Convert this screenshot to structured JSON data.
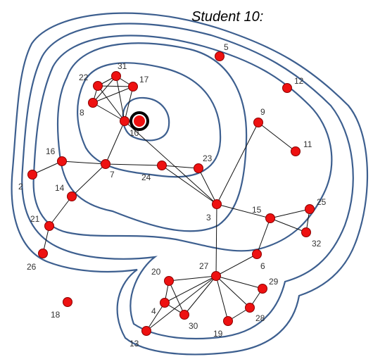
{
  "title": "Student 10:",
  "colors": {
    "contour": "#3d5f8f",
    "node": "#ee1111",
    "edge": "#111111"
  },
  "ego_node": "10",
  "nodes": [
    "2",
    "3",
    "4",
    "5",
    "6",
    "7",
    "8",
    "9",
    "10",
    "11",
    "12",
    "13",
    "14",
    "15",
    "16",
    "17",
    "18",
    "19",
    "20",
    "21",
    "22",
    "23",
    "24",
    "25",
    "26",
    "27",
    "28",
    "29",
    "30",
    "31",
    "32"
  ],
  "edges": [
    [
      "31",
      "22"
    ],
    [
      "31",
      "17"
    ],
    [
      "31",
      "8"
    ],
    [
      "31",
      "10"
    ],
    [
      "22",
      "17"
    ],
    [
      "22",
      "8"
    ],
    [
      "22",
      "10"
    ],
    [
      "17",
      "8"
    ],
    [
      "17",
      "10"
    ],
    [
      "8",
      "10"
    ],
    [
      "10",
      "7"
    ],
    [
      "10",
      "3"
    ],
    [
      "7",
      "16"
    ],
    [
      "7",
      "14"
    ],
    [
      "7",
      "24"
    ],
    [
      "24",
      "23"
    ],
    [
      "24",
      "3"
    ],
    [
      "23",
      "3"
    ],
    [
      "14",
      "21"
    ],
    [
      "21",
      "26"
    ],
    [
      "16",
      "2"
    ],
    [
      "3",
      "15"
    ],
    [
      "3",
      "27"
    ],
    [
      "3",
      "9"
    ],
    [
      "15",
      "25"
    ],
    [
      "15",
      "32"
    ],
    [
      "25",
      "32"
    ],
    [
      "9",
      "11"
    ],
    [
      "6",
      "27"
    ],
    [
      "6",
      "15"
    ],
    [
      "27",
      "20"
    ],
    [
      "27",
      "4"
    ],
    [
      "27",
      "30"
    ],
    [
      "27",
      "19"
    ],
    [
      "27",
      "28"
    ],
    [
      "27",
      "29"
    ],
    [
      "27",
      "13"
    ],
    [
      "20",
      "4"
    ],
    [
      "20",
      "30"
    ],
    [
      "4",
      "30"
    ],
    [
      "4",
      "13"
    ],
    [
      "19",
      "28"
    ],
    [
      "28",
      "29"
    ]
  ]
}
